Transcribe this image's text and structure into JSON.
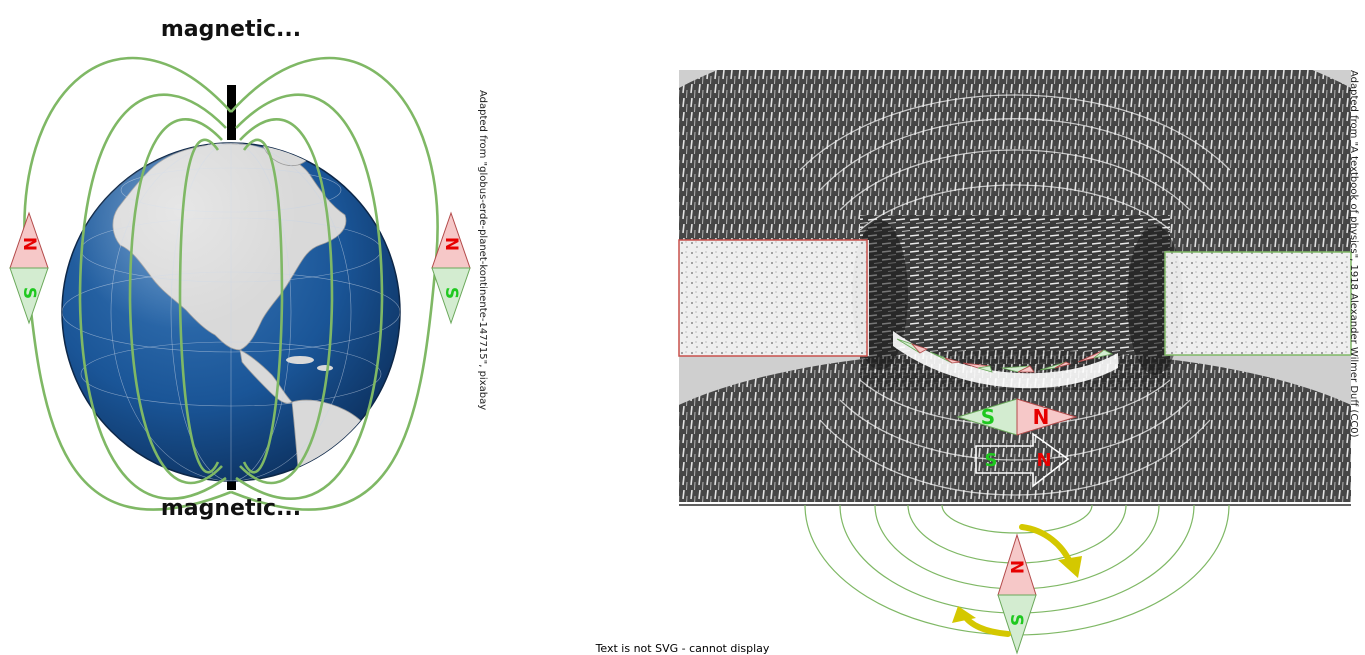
{
  "earth_panel": {
    "top_label": "magnetic...",
    "bottom_label": "magnetic...",
    "credit": "Adapted from \"globus-erde-planet-kontinente-147715\", pixabay",
    "needle_left": {
      "north": "N",
      "south": "S"
    },
    "needle_right": {
      "north": "N",
      "south": "S"
    }
  },
  "filings_panel": {
    "credit": "Adapted from \"A textbook of physics\", 1918 Alexander Wilmer Duff  (CC0)",
    "compass_large": {
      "south": "S",
      "north": "N"
    },
    "arrow_compass": {
      "south": "S",
      "north": "N"
    },
    "rotating_needle": {
      "north": "N",
      "south": "S"
    }
  },
  "footer_text": "Text is not SVG - cannot display",
  "colors": {
    "field_line": "#7fb865",
    "north_fill": "#f6c8c8",
    "north_text": "#e60000",
    "south_fill": "#d3ecd0",
    "south_text": "#1fc81f",
    "ocean": "#1a5597",
    "land": "#d9d9d9",
    "rotation_arrow": "#d4c800",
    "left_magnet_outline": "#c8504b",
    "right_magnet_outline": "#7fb865"
  }
}
